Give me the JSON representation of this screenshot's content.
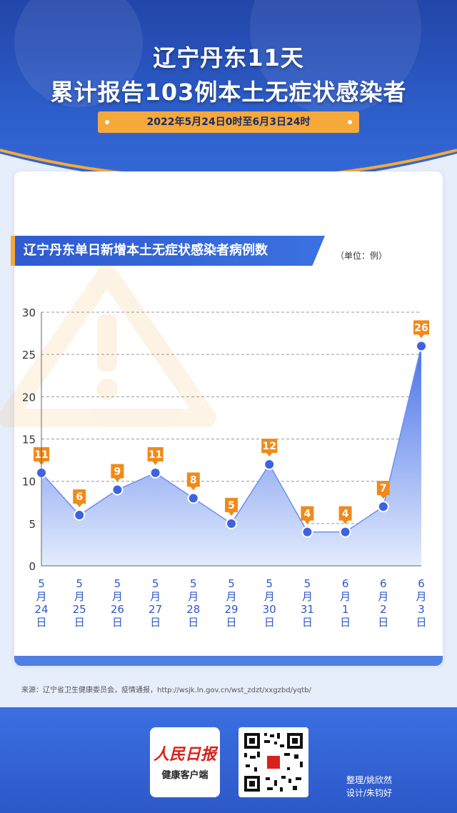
{
  "header": {
    "title_line1": "辽宁丹东11天",
    "title_line2": "累计报告103例本土无症状感染者",
    "date_range": "2022年5月24日0时至6月3日24时"
  },
  "chart_title": "辽宁丹东单日新增本土无症状感染者病例数",
  "unit_label": "（单位：例）",
  "chart_data": {
    "type": "area",
    "title": "辽宁丹东单日新增本土无症状感染者病例数",
    "categories": [
      [
        "5",
        "月",
        "24",
        "日"
      ],
      [
        "5",
        "月",
        "25",
        "日"
      ],
      [
        "5",
        "月",
        "26",
        "日"
      ],
      [
        "5",
        "月",
        "27",
        "日"
      ],
      [
        "5",
        "月",
        "28",
        "日"
      ],
      [
        "5",
        "月",
        "29",
        "日"
      ],
      [
        "5",
        "月",
        "30",
        "日"
      ],
      [
        "5",
        "月",
        "31",
        "日"
      ],
      [
        "6",
        "月",
        "1",
        "日"
      ],
      [
        "6",
        "月",
        "2",
        "日"
      ],
      [
        "6",
        "月",
        "3",
        "日"
      ]
    ],
    "values": [
      11,
      6,
      9,
      11,
      8,
      5,
      12,
      4,
      4,
      7,
      26
    ],
    "ylim": [
      0,
      30
    ],
    "yticks": [
      0,
      5,
      10,
      15,
      20,
      25,
      30
    ],
    "grid": true,
    "colors": {
      "fill_top": "#4a72e8",
      "fill_bottom": "#e3ecfd",
      "line": "#6d8ff0",
      "marker": "#3d63e0",
      "label_bg": "#f08a1a",
      "grid": "#9a9a9a"
    }
  },
  "source_text": "来源：辽宁省卫生健康委员会，疫情通报，http://wsjk.ln.gov.cn/wst_zdzt/xxgzbd/yqtb/",
  "footer": {
    "logo_brand": "人民日报",
    "logo_sub": "健康客户端",
    "credit_editor": "整理/姚欣然",
    "credit_design": "设计/朱钧好"
  }
}
